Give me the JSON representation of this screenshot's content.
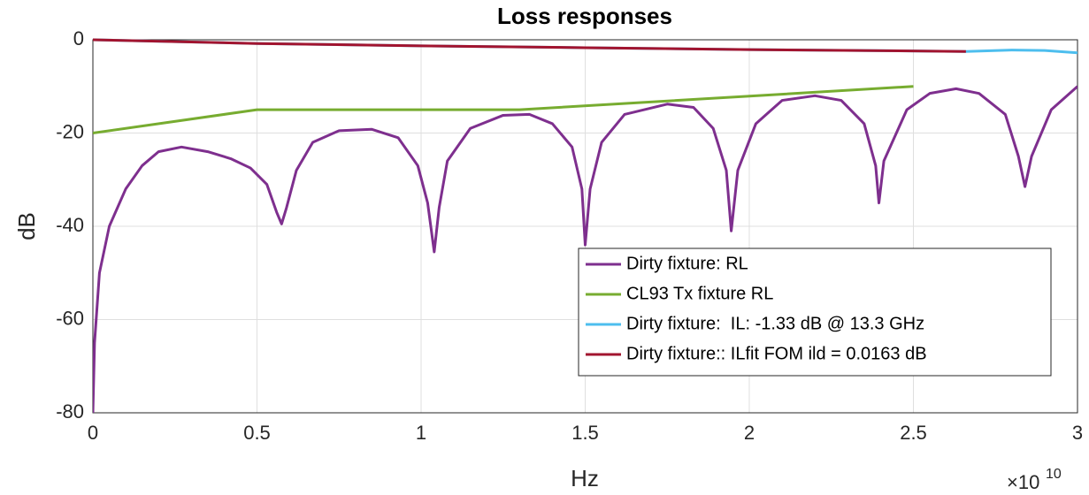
{
  "chart_data": {
    "type": "line",
    "title": "Loss responses",
    "xlabel": "Hz",
    "ylabel": "dB",
    "x_multiplier": {
      "base": "×10",
      "exponent": "10"
    },
    "xlim": [
      0,
      30000000000
    ],
    "ylim": [
      -80,
      0
    ],
    "xticks": [
      0,
      {
        "value": 5000000000,
        "label": "0.5"
      },
      {
        "value": 10000000000,
        "label": "1"
      },
      {
        "value": 15000000000,
        "label": "1.5"
      },
      {
        "value": 20000000000,
        "label": "2"
      },
      {
        "value": 25000000000,
        "label": "2.5"
      },
      {
        "value": 30000000000,
        "label": "3"
      }
    ],
    "yticks": [
      -80,
      -60,
      -40,
      -20,
      0
    ],
    "grid": true,
    "legend_location": "southeast",
    "series": [
      {
        "name": "Dirty fixture: RL",
        "color": "#7e2f8e",
        "x": [
          0,
          50000000,
          200000000,
          500000000,
          1000000000,
          1500000000,
          2000000000,
          2700000000,
          3500000000,
          4200000000,
          4800000000,
          5300000000,
          5600000000,
          5750000000,
          5900000000,
          6200000000,
          6700000000,
          7500000000,
          8500000000,
          9300000000,
          9900000000,
          10200000000,
          10400000000,
          10550000000,
          10800000000,
          11500000000,
          12500000000,
          13300000000,
          14000000000,
          14600000000,
          14900000000,
          15000000000,
          15150000000,
          15500000000,
          16200000000,
          17500000000,
          18300000000,
          18900000000,
          19300000000,
          19450000000,
          19650000000,
          20200000000,
          21000000000,
          22000000000,
          22800000000,
          23500000000,
          23850000000,
          23950000000,
          24100000000,
          24800000000,
          25500000000,
          26300000000,
          27000000000,
          27800000000,
          28200000000,
          28400000000,
          28600000000,
          29200000000,
          30000000000
        ],
        "values": [
          -80,
          -65,
          -50,
          -40,
          -32,
          -27,
          -24,
          -23,
          -24,
          -25.5,
          -27.5,
          -31,
          -37,
          -39.5,
          -36,
          -28,
          -22,
          -19.5,
          -19.2,
          -21,
          -27,
          -35,
          -45.5,
          -36,
          -26,
          -19,
          -16.2,
          -16,
          -18,
          -23,
          -32,
          -44,
          -32,
          -22,
          -16,
          -13.8,
          -14.5,
          -19,
          -28,
          -41,
          -28,
          -18,
          -13,
          -12,
          -13,
          -18,
          -27,
          -35,
          -26,
          -15,
          -11.5,
          -10.5,
          -11.5,
          -16,
          -25,
          -31.5,
          -25,
          -15,
          -10
        ]
      },
      {
        "name": "CL93 Tx fixture RL",
        "color": "#77ac30",
        "x": [
          0,
          5000000000,
          13000000000,
          25000000000
        ],
        "values": [
          -20,
          -15,
          -15,
          -10
        ]
      },
      {
        "name": "Dirty fixture:  IL: -1.33 dB @ 13.3 GHz",
        "color": "#4dbeee",
        "x": [
          0,
          5000000000,
          10000000000,
          15000000000,
          20000000000,
          26600000000,
          28000000000,
          29000000000,
          30000000000
        ],
        "values": [
          0,
          -0.8,
          -1.3,
          -1.7,
          -2.1,
          -2.5,
          -2.2,
          -2.3,
          -2.8
        ]
      },
      {
        "name": "Dirty fixture:: ILfit FOM ild = 0.0163 dB",
        "color": "#a2142f",
        "x": [
          0,
          5000000000,
          10000000000,
          15000000000,
          20000000000,
          26600000000
        ],
        "values": [
          0,
          -0.8,
          -1.3,
          -1.7,
          -2.1,
          -2.5
        ]
      }
    ]
  }
}
